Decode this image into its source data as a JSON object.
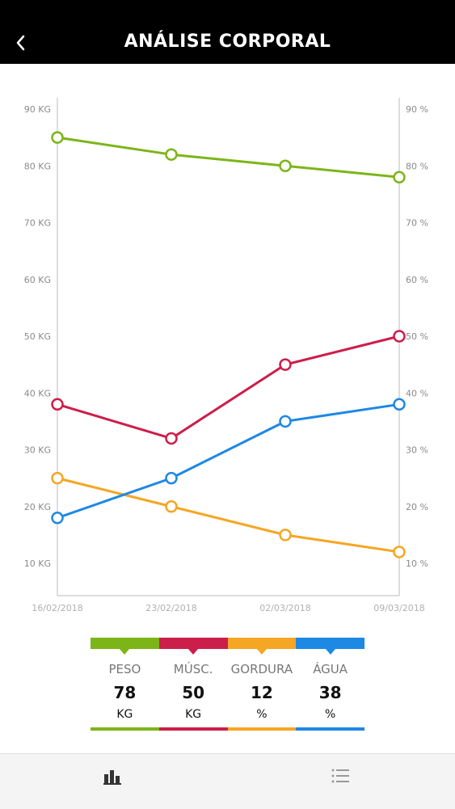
{
  "header": {
    "title": "ANÁLISE CORPORAL",
    "back_icon": "chevron-left-icon"
  },
  "chart_data": {
    "type": "line",
    "x": [
      "16/02/2018",
      "23/02/2018",
      "02/03/2018",
      "09/03/2018"
    ],
    "series": [
      {
        "name": "PESO",
        "values": [
          85,
          82,
          80,
          78
        ],
        "color": "#7cb518",
        "axis": "left"
      },
      {
        "name": "MÚSC.",
        "values": [
          38,
          32,
          45,
          50
        ],
        "color": "#cc1e4a",
        "axis": "left"
      },
      {
        "name": "GORDURA",
        "values": [
          25,
          20,
          15,
          12
        ],
        "color": "#f5a623",
        "axis": "right"
      },
      {
        "name": "ÁGUA",
        "values": [
          18,
          25,
          35,
          38
        ],
        "color": "#1e88e5",
        "axis": "right"
      }
    ],
    "yticks_left": [
      "10 KG",
      "20 KG",
      "30 KG",
      "40 KG",
      "50 KG",
      "60 KG",
      "70 KG",
      "80 KG",
      "90 KG"
    ],
    "yticks_right": [
      "10 %",
      "20 %",
      "30 %",
      "40 %",
      "50 %",
      "60 %",
      "70 %",
      "80 %",
      "90 %"
    ],
    "ylim_left": [
      5,
      90
    ],
    "ylim_right": [
      5,
      90
    ],
    "grid": false
  },
  "legend": [
    {
      "name": "PESO",
      "value": "78",
      "unit": "KG",
      "color": "#7cb518"
    },
    {
      "name": "MÚSC.",
      "value": "50",
      "unit": "KG",
      "color": "#cc1e4a"
    },
    {
      "name": "GORDURA",
      "value": "12",
      "unit": "%",
      "color": "#f5a623"
    },
    {
      "name": "ÁGUA",
      "value": "38",
      "unit": "%",
      "color": "#1e88e5"
    }
  ],
  "tabbar": {
    "tabs": [
      {
        "icon": "bar-chart-icon",
        "active": true
      },
      {
        "icon": "list-icon",
        "active": false
      }
    ]
  }
}
